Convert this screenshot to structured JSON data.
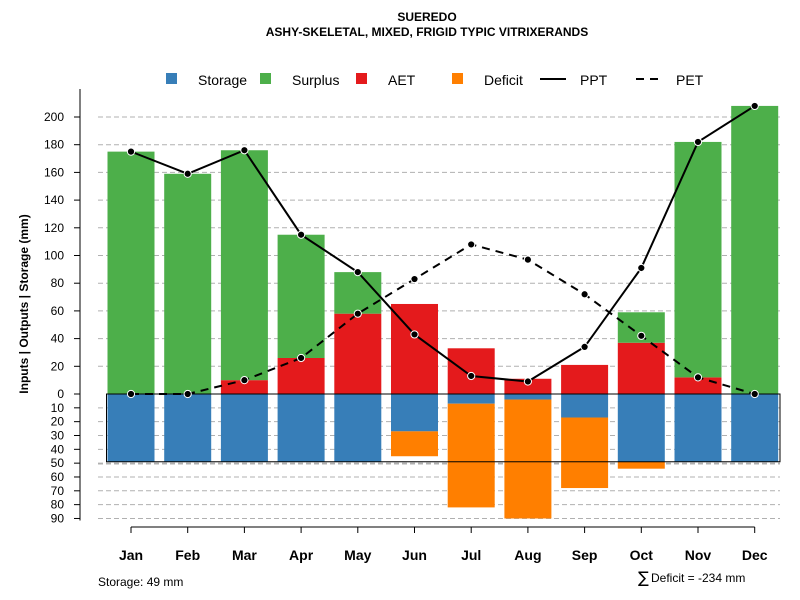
{
  "chart_data": {
    "type": "bar",
    "title": "SUEREDO",
    "subtitle": "ASHY-SKELETAL, MIXED, FRIGID TYPIC VITRIXERANDS",
    "ylabel": "Inputs | Outputs | Storage   (mm)",
    "categories": [
      "Jan",
      "Feb",
      "Mar",
      "Apr",
      "May",
      "Jun",
      "Jul",
      "Aug",
      "Sep",
      "Oct",
      "Nov",
      "Dec"
    ],
    "ylim_positive": [
      0,
      210
    ],
    "ylim_negative": [
      0,
      90
    ],
    "yticks_positive": [
      0,
      20,
      40,
      60,
      80,
      100,
      120,
      140,
      160,
      180,
      200
    ],
    "yticks_negative": [
      10,
      20,
      30,
      40,
      50,
      60,
      70,
      80,
      90
    ],
    "series": [
      {
        "name": "Storage",
        "color": "#377EB8",
        "values": [
          49,
          49,
          49,
          49,
          49,
          27,
          7,
          4,
          17,
          49,
          49,
          49
        ]
      },
      {
        "name": "Surplus",
        "color": "#4DAF4A",
        "values": [
          175,
          159,
          166,
          89,
          30,
          0,
          0,
          0,
          0,
          22,
          170,
          208
        ]
      },
      {
        "name": "AET",
        "color": "#E41A1C",
        "values": [
          0,
          0,
          10,
          26,
          58,
          65,
          33,
          11,
          21,
          37,
          12,
          0
        ]
      },
      {
        "name": "Deficit",
        "color": "#FF7F00",
        "values": [
          0,
          0,
          0,
          0,
          0,
          18,
          75,
          86,
          51,
          5,
          0,
          0
        ]
      }
    ],
    "lines": [
      {
        "name": "PPT",
        "style": "solid",
        "values": [
          175,
          159,
          176,
          115,
          88,
          43,
          13,
          9,
          34,
          91,
          182,
          208
        ]
      },
      {
        "name": "PET",
        "style": "dashed",
        "values": [
          0,
          0,
          10,
          26,
          58,
          83,
          108,
          97,
          72,
          42,
          12,
          0
        ]
      }
    ],
    "legend": {
      "position": "top",
      "items": [
        {
          "label": "Storage",
          "type": "box",
          "color": "#377EB8"
        },
        {
          "label": "Surplus",
          "type": "box",
          "color": "#4DAF4A"
        },
        {
          "label": "AET",
          "type": "box",
          "color": "#E41A1C"
        },
        {
          "label": "Deficit",
          "type": "box",
          "color": "#FF7F00"
        },
        {
          "label": "PPT",
          "type": "line",
          "dash": "solid"
        },
        {
          "label": "PET",
          "type": "line",
          "dash": "dashed"
        }
      ]
    },
    "grid": true,
    "notes": {
      "storage": "Storage: 49 mm",
      "deficit_symbol": "∑",
      "deficit": "Deficit = -234 mm"
    }
  }
}
